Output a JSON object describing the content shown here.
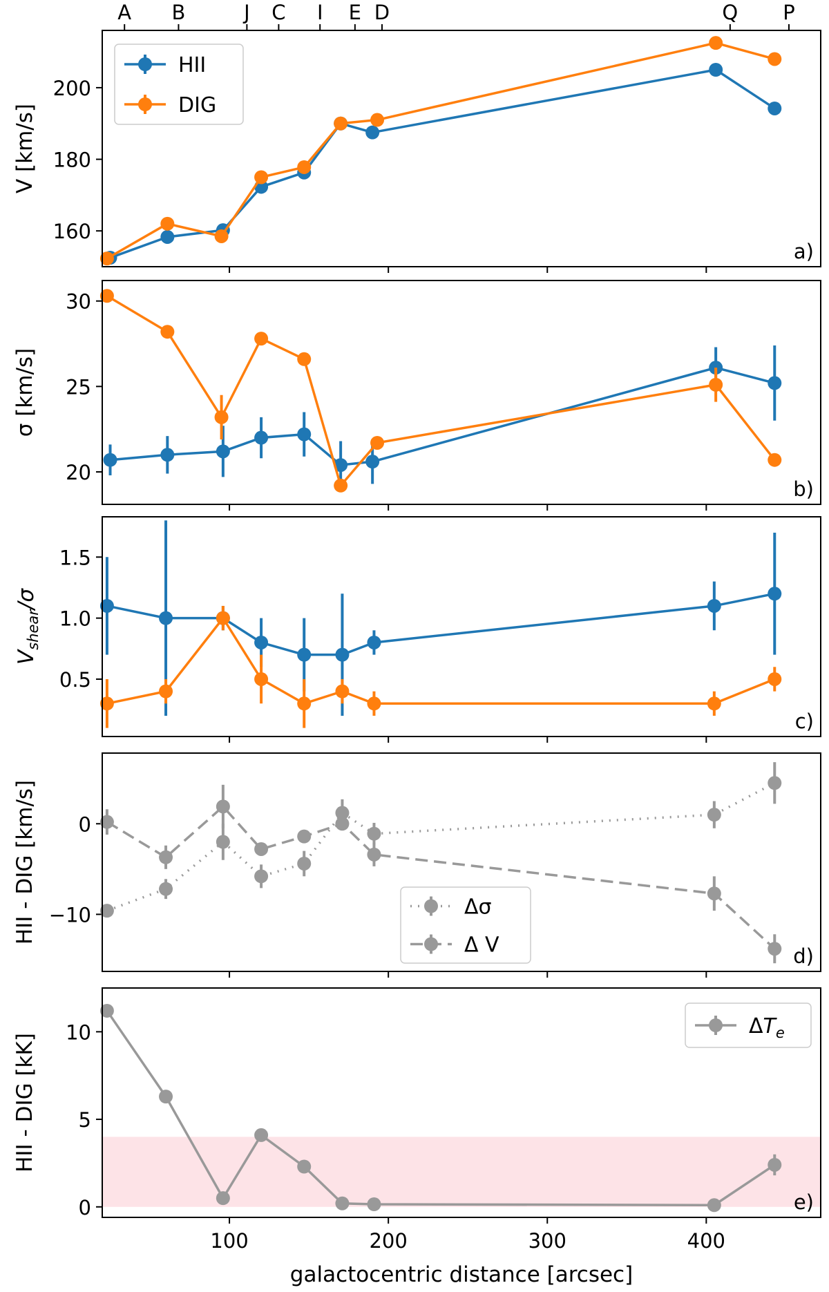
{
  "figure": {
    "xlabel": "galactocentric distance [arcsec]",
    "xlim": [
      20,
      472
    ],
    "xticks": [
      100,
      200,
      300,
      400
    ],
    "top_ticks": [
      {
        "label": "A",
        "x": 34
      },
      {
        "label": "B",
        "x": 68
      },
      {
        "label": "J",
        "x": 111
      },
      {
        "label": "C",
        "x": 131
      },
      {
        "label": "I",
        "x": 157
      },
      {
        "label": "E",
        "x": 179
      },
      {
        "label": "D",
        "x": 196
      },
      {
        "label": "Q",
        "x": 415
      },
      {
        "label": "P",
        "x": 452
      }
    ]
  },
  "colors": {
    "blue": "#1f77b4",
    "orange": "#ff7f0e",
    "gray": "#999999",
    "band": "#fde3e7"
  },
  "chart_data": [
    {
      "id": "a",
      "type": "line",
      "panel_label": "a)",
      "ylabel": "V [km/s]",
      "ylim": [
        150,
        216
      ],
      "yticks": [
        160,
        180,
        200
      ],
      "legend": "top-left",
      "series": [
        {
          "name": "HII",
          "color": "blue",
          "style": "solid",
          "x": [
            25,
            61,
            96,
            120,
            147,
            170,
            190,
            406,
            443
          ],
          "y": [
            152.5,
            158.3,
            160.2,
            172.3,
            176.3,
            190.0,
            187.5,
            205.0,
            194.2
          ],
          "err": [
            0,
            0,
            0,
            0,
            0,
            0,
            0,
            0,
            0
          ]
        },
        {
          "name": "DIG",
          "color": "orange",
          "style": "solid",
          "x": [
            23,
            61,
            95,
            120,
            147,
            170,
            193,
            406,
            443
          ],
          "y": [
            152.3,
            162.0,
            158.5,
            175.0,
            177.8,
            190.0,
            191.0,
            212.5,
            208.0
          ],
          "err": [
            0,
            0,
            0,
            0,
            0,
            0,
            0,
            0,
            0
          ]
        }
      ]
    },
    {
      "id": "b",
      "type": "line",
      "panel_label": "b)",
      "ylabel": "σ [km/s]",
      "ylim": [
        18.1,
        31.2
      ],
      "yticks": [
        20,
        25,
        30
      ],
      "legend": "",
      "series": [
        {
          "name": "HII",
          "color": "blue",
          "style": "solid",
          "x": [
            25,
            61,
            96,
            120,
            147,
            170,
            190,
            406,
            443
          ],
          "y": [
            20.7,
            21.0,
            21.2,
            22.0,
            22.2,
            20.4,
            20.6,
            26.1,
            25.2
          ],
          "err": [
            0.9,
            1.1,
            1.5,
            1.2,
            1.3,
            1.4,
            1.3,
            1.2,
            2.2
          ]
        },
        {
          "name": "DIG",
          "color": "orange",
          "style": "solid",
          "x": [
            23,
            61,
            95,
            120,
            147,
            170,
            193,
            406,
            443
          ],
          "y": [
            30.3,
            28.2,
            23.2,
            27.8,
            26.6,
            19.2,
            21.7,
            25.1,
            20.7
          ],
          "err": [
            0,
            0,
            1.3,
            0,
            0,
            0,
            0,
            1.0,
            0
          ]
        }
      ]
    },
    {
      "id": "c",
      "type": "line",
      "panel_label": "c)",
      "ylabel": "V_shear/σ",
      "ylim": [
        0.03,
        1.83
      ],
      "yticks": [
        0.5,
        1.0,
        1.5
      ],
      "ytick_labels": [
        "0.5",
        "1.0",
        "1.5"
      ],
      "legend": "",
      "series": [
        {
          "name": "HII",
          "color": "blue",
          "style": "solid",
          "x": [
            23,
            60,
            96,
            120,
            147,
            171,
            191,
            405,
            443
          ],
          "y": [
            1.1,
            1.0,
            1.0,
            0.8,
            0.7,
            0.7,
            0.8,
            1.1,
            1.2
          ],
          "err": [
            0.4,
            0.8,
            0.1,
            0.2,
            0.3,
            0.5,
            0.1,
            0.2,
            0.5
          ]
        },
        {
          "name": "DIG",
          "color": "orange",
          "style": "solid",
          "x": [
            23,
            60,
            96,
            120,
            147,
            171,
            191,
            405,
            443
          ],
          "y": [
            0.3,
            0.4,
            1.0,
            0.5,
            0.3,
            0.4,
            0.3,
            0.3,
            0.5
          ],
          "err": [
            0.2,
            0.1,
            0.1,
            0.2,
            0.2,
            0.1,
            0.1,
            0.1,
            0.1
          ]
        }
      ]
    },
    {
      "id": "d",
      "type": "line",
      "panel_label": "d)",
      "ylabel": "HII - DIG [km/s]",
      "ylim": [
        -16.3,
        7.8
      ],
      "yticks": [
        -10,
        0
      ],
      "ytick_labels": [
        "−10",
        "0"
      ],
      "legend": "bottom-center",
      "series": [
        {
          "name": "Δσ",
          "color": "gray",
          "style": "dotted",
          "x": [
            23,
            60,
            96,
            120,
            147,
            171,
            191,
            405,
            443
          ],
          "y": [
            -9.6,
            -7.2,
            -2.0,
            -5.8,
            -4.4,
            1.2,
            -1.1,
            1.0,
            4.5
          ],
          "err": [
            0,
            1.1,
            2.0,
            1.3,
            1.4,
            1.5,
            1.2,
            1.5,
            2.3
          ]
        },
        {
          "name": "Δ V",
          "color": "gray",
          "style": "dashed",
          "x": [
            23,
            60,
            96,
            120,
            147,
            171,
            191,
            405,
            443
          ],
          "y": [
            0.2,
            -3.7,
            1.9,
            -2.8,
            -1.4,
            0.0,
            -3.4,
            -7.7,
            -13.8
          ],
          "err": [
            1.4,
            1.3,
            2.4,
            0,
            0,
            0,
            1.3,
            1.9,
            1.6
          ]
        }
      ]
    },
    {
      "id": "e",
      "type": "line",
      "panel_label": "e)",
      "ylabel": "HII - DIG [kK]",
      "ylim": [
        -0.6,
        12.5
      ],
      "yticks": [
        0,
        5,
        10
      ],
      "legend": "top-right",
      "band": [
        0,
        4
      ],
      "series": [
        {
          "name": "ΔT_e",
          "color": "gray",
          "style": "solid",
          "x": [
            23,
            60,
            96,
            120,
            147,
            171,
            191,
            405,
            443
          ],
          "y": [
            11.2,
            6.3,
            0.5,
            4.1,
            2.3,
            0.2,
            0.15,
            0.1,
            2.4
          ],
          "err": [
            0,
            0,
            0,
            0,
            0,
            0,
            0,
            0,
            0.6
          ]
        }
      ]
    }
  ]
}
